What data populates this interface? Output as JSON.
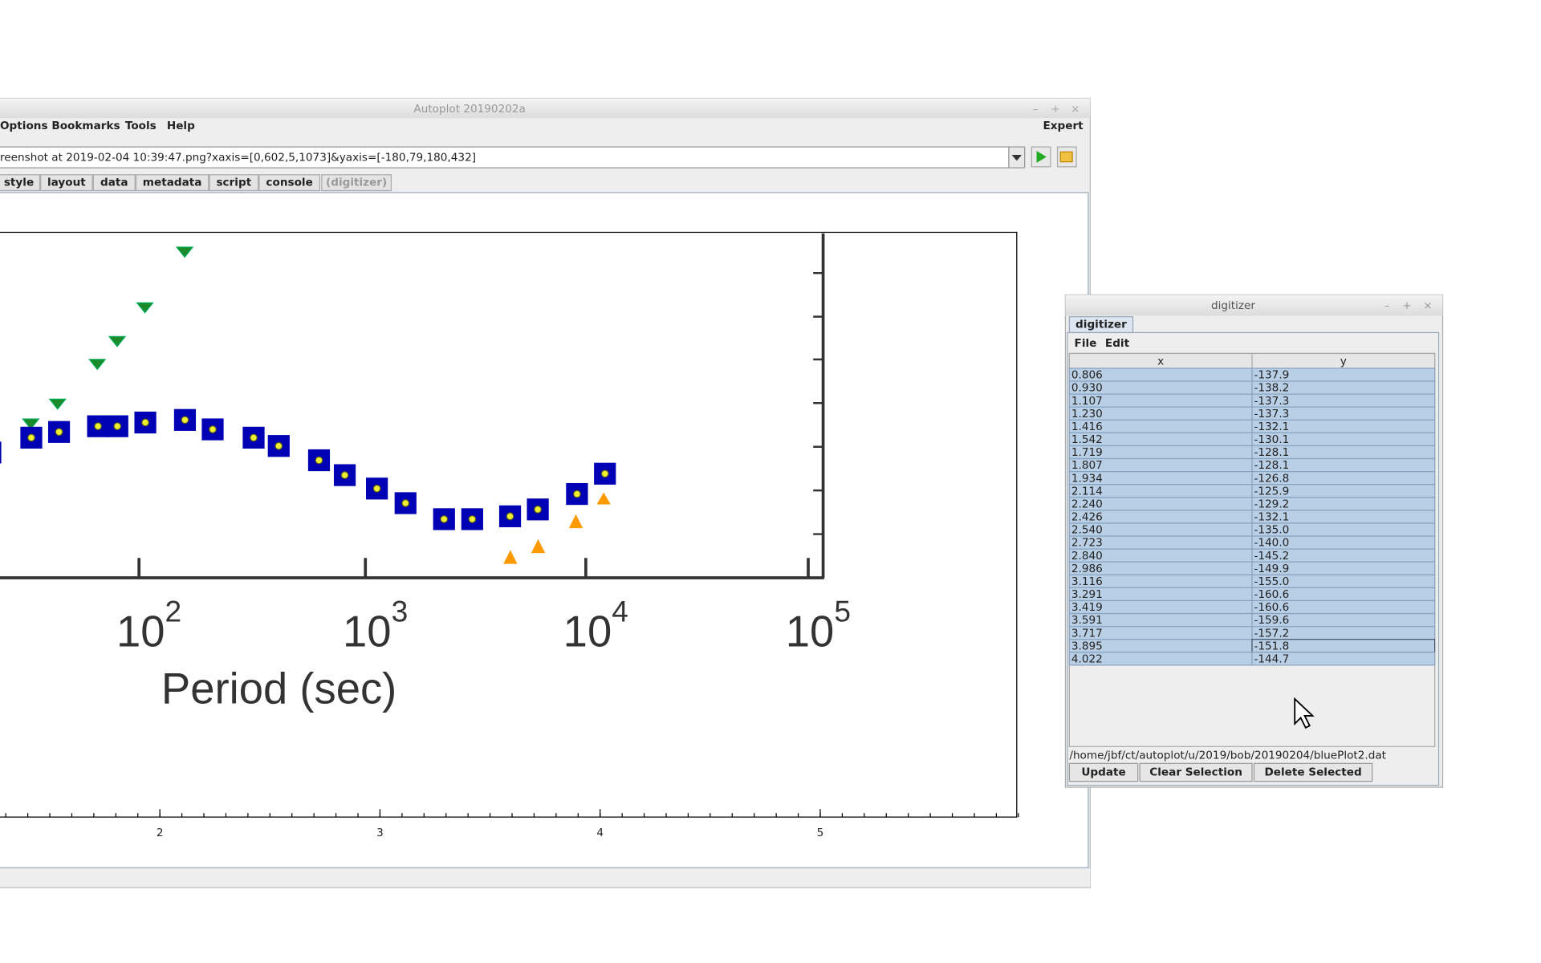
{
  "main_window": {
    "title": "Autoplot 20190202a",
    "menu": [
      "Options",
      "Bookmarks",
      "Tools",
      "Help"
    ],
    "expert": "Expert",
    "address": "reenshot at 2019-02-04 10:39:47.png?xaxis=[0,602,5,1073]&yaxis=[-180,79,180,432]",
    "tabs": [
      "style",
      "layout",
      "data",
      "metadata",
      "script",
      "console",
      "(digitizer)"
    ]
  },
  "plot": {
    "image_ticks": [
      {
        "base": "10",
        "exp": "2"
      },
      {
        "base": "10",
        "exp": "3"
      },
      {
        "base": "10",
        "exp": "4"
      },
      {
        "base": "10",
        "exp": "5"
      }
    ],
    "image_xlabel": "Period (sec)",
    "axis_ticks": [
      2,
      3,
      4,
      5
    ]
  },
  "digitizer": {
    "title": "digitizer",
    "tab": "digitizer",
    "menu": [
      "File",
      "Edit"
    ],
    "columns": [
      "x",
      "y"
    ],
    "rows": [
      [
        "0.806",
        "-137.9"
      ],
      [
        "0.930",
        "-138.2"
      ],
      [
        "1.107",
        "-137.3"
      ],
      [
        "1.230",
        "-137.3"
      ],
      [
        "1.416",
        "-132.1"
      ],
      [
        "1.542",
        "-130.1"
      ],
      [
        "1.719",
        "-128.1"
      ],
      [
        "1.807",
        "-128.1"
      ],
      [
        "1.934",
        "-126.8"
      ],
      [
        "2.114",
        "-125.9"
      ],
      [
        "2.240",
        "-129.2"
      ],
      [
        "2.426",
        "-132.1"
      ],
      [
        "2.540",
        "-135.0"
      ],
      [
        "2.723",
        "-140.0"
      ],
      [
        "2.840",
        "-145.2"
      ],
      [
        "2.986",
        "-149.9"
      ],
      [
        "3.116",
        "-155.0"
      ],
      [
        "3.291",
        "-160.6"
      ],
      [
        "3.419",
        "-160.6"
      ],
      [
        "3.591",
        "-159.6"
      ],
      [
        "3.717",
        "-157.2"
      ],
      [
        "3.895",
        "-151.8"
      ],
      [
        "4.022",
        "-144.7"
      ]
    ],
    "file": "/home/jbf/ct/autoplot/u/2019/bob/20190204/bluePlot2.dat",
    "buttons": [
      "Update",
      "Clear Selection",
      "Delete Selected"
    ]
  }
}
